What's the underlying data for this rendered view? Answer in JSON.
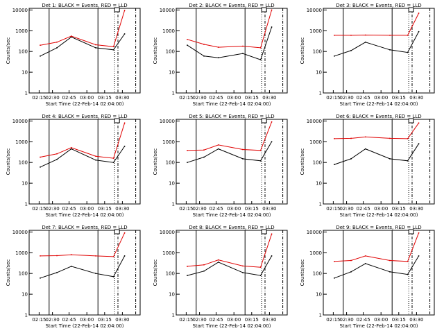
{
  "figure": {
    "start_time_label": "Start Time (22-Feb-14 02:04:00)",
    "ylabel": "Counts/sec",
    "x_ticks": [
      "02:15",
      "02:30",
      "02:45",
      "03:00",
      "03:15",
      "03:30"
    ],
    "y_ticks": [
      "1",
      "10",
      "100",
      "1000",
      "10000"
    ]
  },
  "chart_data": [
    {
      "type": "line",
      "title": "Det 1: BLACK = Events, RED = LLD",
      "xlabel": "Start Time (22-Feb-14 02:04:00)",
      "ylabel": "Counts/sec",
      "yscale": "log",
      "ylim": [
        1,
        12000
      ],
      "x": [
        "02:15",
        "02:30",
        "02:45",
        "03:00",
        "03:15",
        "03:30"
      ],
      "series": [
        {
          "color": "#000000",
          "values": [
            60,
            150,
            500,
            150,
            120,
            700
          ]
        },
        {
          "color": "#e00000",
          "values": [
            200,
            280,
            550,
            210,
            170,
            9500
          ]
        }
      ]
    },
    {
      "type": "line",
      "title": "Det 2: BLACK = Events, RED = LLD",
      "xlabel": "Start Time (22-Feb-14 02:04:00)",
      "ylabel": "Counts/sec",
      "yscale": "log",
      "ylim": [
        1,
        12000
      ],
      "x": [
        "02:15",
        "02:30",
        "02:45",
        "03:00",
        "03:15",
        "03:30"
      ],
      "series": [
        {
          "color": "#000000",
          "values": [
            200,
            60,
            50,
            80,
            40,
            1500
          ]
        },
        {
          "color": "#e00000",
          "values": [
            380,
            220,
            160,
            180,
            150,
            10000
          ]
        }
      ]
    },
    {
      "type": "line",
      "title": "Det 3: BLACK = Events, RED = LLD",
      "xlabel": "Start Time (22-Feb-14 02:04:00)",
      "ylabel": "Counts/sec",
      "yscale": "log",
      "ylim": [
        1,
        12000
      ],
      "x": [
        "02:15",
        "02:30",
        "02:45",
        "03:00",
        "03:15",
        "03:30"
      ],
      "series": [
        {
          "color": "#000000",
          "values": [
            60,
            110,
            280,
            120,
            90,
            900
          ]
        },
        {
          "color": "#e00000",
          "values": [
            600,
            600,
            620,
            600,
            600,
            7000
          ]
        }
      ]
    },
    {
      "type": "line",
      "title": "Det 4: BLACK = Events, RED = LLD",
      "xlabel": "Start Time (22-Feb-14 02:04:00)",
      "ylabel": "Counts/sec",
      "yscale": "log",
      "ylim": [
        1,
        12000
      ],
      "x": [
        "02:15",
        "02:30",
        "02:45",
        "03:00",
        "03:15",
        "03:30"
      ],
      "series": [
        {
          "color": "#000000",
          "values": [
            60,
            140,
            450,
            130,
            100,
            600
          ]
        },
        {
          "color": "#e00000",
          "values": [
            180,
            260,
            520,
            200,
            160,
            8000
          ]
        }
      ]
    },
    {
      "type": "line",
      "title": "Det 5: BLACK = Events, RED = LLD",
      "xlabel": "Start Time (22-Feb-14 02:04:00)",
      "ylabel": "Counts/sec",
      "yscale": "log",
      "ylim": [
        1,
        12000
      ],
      "x": [
        "02:15",
        "02:30",
        "02:45",
        "03:00",
        "03:15",
        "03:30"
      ],
      "series": [
        {
          "color": "#000000",
          "values": [
            100,
            180,
            450,
            150,
            120,
            1000
          ]
        },
        {
          "color": "#e00000",
          "values": [
            380,
            400,
            700,
            420,
            380,
            9000
          ]
        }
      ]
    },
    {
      "type": "line",
      "title": "Det 6: BLACK = Events, RED = LLD",
      "xlabel": "Start Time (22-Feb-14 02:04:00)",
      "ylabel": "Counts/sec",
      "yscale": "log",
      "ylim": [
        1,
        12000
      ],
      "x": [
        "02:15",
        "02:30",
        "02:45",
        "03:00",
        "03:15",
        "03:30"
      ],
      "series": [
        {
          "color": "#000000",
          "values": [
            80,
            150,
            450,
            150,
            120,
            800
          ]
        },
        {
          "color": "#e00000",
          "values": [
            1400,
            1450,
            1700,
            1450,
            1400,
            8000
          ]
        }
      ]
    },
    {
      "type": "line",
      "title": "Det 7: BLACK = Events, RED = LLD",
      "xlabel": "Start Time (22-Feb-14 02:04:00)",
      "ylabel": "Counts/sec",
      "yscale": "log",
      "ylim": [
        1,
        12000
      ],
      "x": [
        "02:15",
        "02:30",
        "02:45",
        "03:00",
        "03:15",
        "03:30"
      ],
      "series": [
        {
          "color": "#000000",
          "values": [
            60,
            110,
            220,
            100,
            70,
            700
          ]
        },
        {
          "color": "#e00000",
          "values": [
            700,
            720,
            800,
            700,
            650,
            9000
          ]
        }
      ]
    },
    {
      "type": "line",
      "title": "Det 8: BLACK = Events, RED = LLD",
      "xlabel": "Start Time (22-Feb-14 02:04:00)",
      "ylabel": "Counts/sec",
      "yscale": "log",
      "ylim": [
        1,
        12000
      ],
      "x": [
        "02:15",
        "02:30",
        "02:45",
        "03:00",
        "03:15",
        "03:30"
      ],
      "series": [
        {
          "color": "#000000",
          "values": [
            80,
            130,
            350,
            110,
            80,
            700
          ]
        },
        {
          "color": "#e00000",
          "values": [
            220,
            260,
            450,
            230,
            200,
            8000
          ]
        }
      ]
    },
    {
      "type": "line",
      "title": "Det 9: BLACK = Events, RED = LLD",
      "xlabel": "Start Time (22-Feb-14 02:04:00)",
      "ylabel": "Counts/sec",
      "yscale": "log",
      "ylim": [
        1,
        12000
      ],
      "x": [
        "02:15",
        "02:30",
        "02:45",
        "03:00",
        "03:15",
        "03:30"
      ],
      "series": [
        {
          "color": "#000000",
          "values": [
            60,
            120,
            300,
            120,
            90,
            700
          ]
        },
        {
          "color": "#e00000",
          "values": [
            380,
            420,
            700,
            420,
            380,
            9000
          ]
        }
      ]
    }
  ]
}
